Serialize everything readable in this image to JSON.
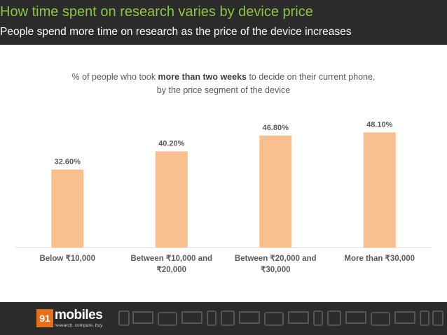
{
  "header": {
    "title": "How time spent on research varies by device price",
    "subtitle": "People spend more time on research as the price of the device increases"
  },
  "chart_title": {
    "prefix": "% of people who took ",
    "bold": "more than two weeks",
    "suffix": " to decide on their current phone,",
    "line2": "by the price segment of the device"
  },
  "colors": {
    "bar": "#f9c08f",
    "header_bg": "#2b2b2b",
    "title_green": "#8cc63f",
    "logo_orange": "#e86f1c"
  },
  "logo": {
    "number": "91",
    "word": "mobiles",
    "tagline": "research. compare. buy."
  },
  "chart_data": {
    "type": "bar",
    "categories": [
      [
        "Below ₹10,000"
      ],
      [
        "Between ₹10,000 and",
        "₹20,000"
      ],
      [
        "Between ₹20,000 and",
        "₹30,000"
      ],
      [
        "More than ₹30,000"
      ]
    ],
    "values": [
      32.6,
      40.2,
      46.8,
      48.1
    ],
    "value_labels": [
      "32.60%",
      "40.20%",
      "46.80%",
      "48.10%"
    ],
    "ylim": [
      0,
      52
    ],
    "grid": false
  }
}
